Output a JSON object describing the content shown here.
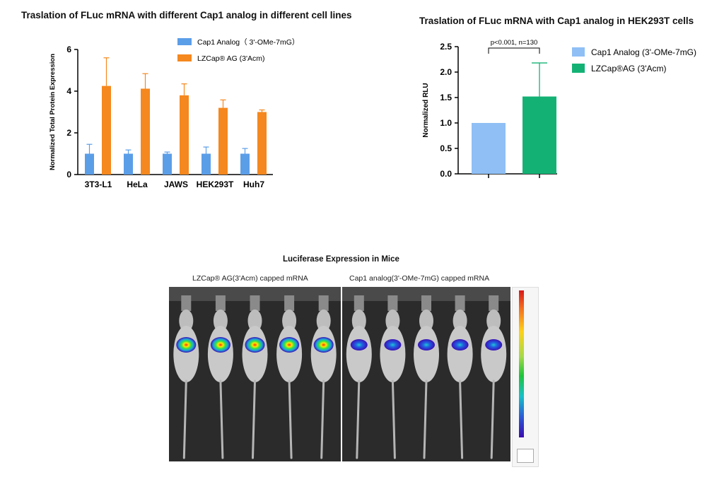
{
  "left_chart": {
    "title": "Traslation of FLuc mRNA with different Cap1 analog in different cell lines",
    "ylabel": "Normalized  Total Protein Expression",
    "legend": [
      "Cap1 Analog（ 3'-OMe-7mG）",
      "LZCap® AG (3'Acm)"
    ]
  },
  "right_chart": {
    "title": "Traslation of FLuc mRNA with Cap1 analog in HEK293T cells",
    "ylabel": "Normalized  RLU",
    "annotation": "p<0.001, n=130",
    "legend": [
      "Cap1 Analog (3'-OMe-7mG)",
      "LZCap®AG (3'Acm)"
    ]
  },
  "mice_figure": {
    "title": "Luciferase Expression in Mice",
    "left_label": "LZCap® AG(3'Acm) capped mRNA",
    "right_label": "Cap1  analog(3'-OMe-7mG) capped mRNA",
    "left_mice_count": 5,
    "right_mice_count": 5
  },
  "colors": {
    "blue": "#5b9ee8",
    "orange": "#f5881e",
    "light_blue": "#8fbff5",
    "green": "#13b274"
  },
  "chart_data": [
    {
      "type": "bar",
      "categories": [
        "3T3-L1",
        "HeLa",
        "JAWS",
        "HEK293T",
        "Huh7"
      ],
      "series": [
        {
          "name": "Cap1 Analog（ 3'-OMe-7mG）",
          "values": [
            1.0,
            1.0,
            1.0,
            1.0,
            1.0
          ],
          "errors": [
            0.45,
            0.18,
            0.08,
            0.32,
            0.25
          ]
        },
        {
          "name": "LZCap® AG (3'Acm)",
          "values": [
            4.25,
            4.12,
            3.8,
            3.2,
            3.0
          ],
          "errors": [
            1.35,
            0.72,
            0.55,
            0.38,
            0.1
          ]
        }
      ],
      "ylim": [
        0,
        6
      ],
      "yticks": [
        0,
        2,
        4,
        6
      ],
      "ylabel": "Normalized  Total Protein Expression",
      "xlabel": "",
      "legend_position": "top-right"
    },
    {
      "type": "bar",
      "categories": [
        "Cap1 Analog (3'-OMe-7mG)",
        "LZCap®AG (3'Acm)"
      ],
      "values": [
        1.0,
        1.52
      ],
      "errors": [
        0.0,
        0.66
      ],
      "ylim": [
        0,
        2.5
      ],
      "yticks": [
        "0.0",
        "0.5",
        "1.0",
        "1.5",
        "2.0",
        "2.5"
      ],
      "ylabel": "Normalized  RLU",
      "xlabel": "",
      "legend_position": "right"
    }
  ]
}
